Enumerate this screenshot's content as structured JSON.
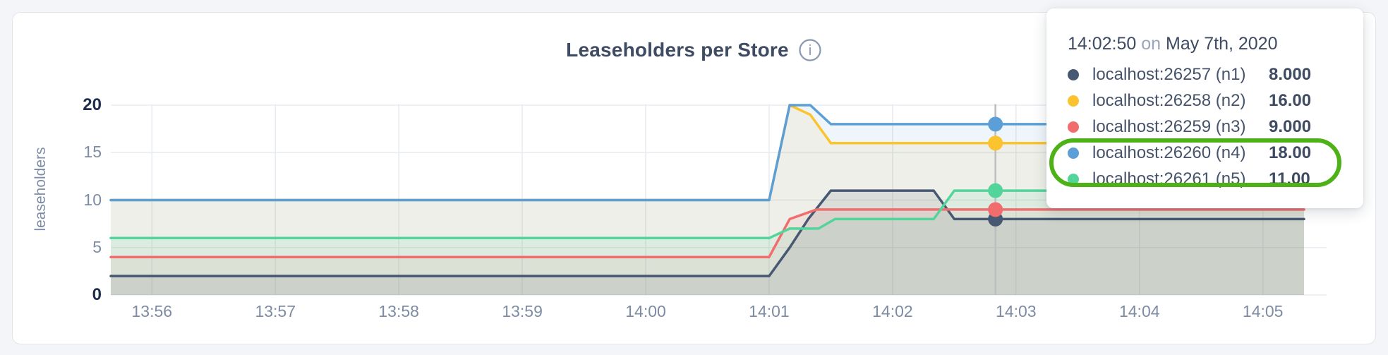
{
  "page": {
    "background": "#f4f5f8"
  },
  "header": {
    "title": "Leaseholders per Store",
    "info_glyph": "i",
    "info_icon_color": "#8997b1"
  },
  "chart_data": {
    "type": "area",
    "title": "Leaseholders per Store",
    "xlabel": "",
    "ylabel": "leaseholders",
    "grid": true,
    "legend_position": "hover-tooltip",
    "ylim": [
      0,
      20
    ],
    "y_ticks": [
      "0",
      "5",
      "10",
      "15",
      "20"
    ],
    "y_tick_values": [
      0,
      5,
      10,
      15,
      20
    ],
    "x_ticks": [
      "13:56",
      "13:57",
      "13:58",
      "13:59",
      "14:00",
      "14:01",
      "14:02",
      "14:03",
      "14:04",
      "14:05"
    ],
    "x_tick_seconds": [
      20,
      80,
      140,
      200,
      260,
      320,
      380,
      440,
      500,
      560
    ],
    "x_domain_labels": [
      "13:55:40",
      "14:05:20"
    ],
    "x_domain_seconds": [
      0,
      580
    ],
    "series": [
      {
        "name": "localhost:26257 (n1)",
        "color": "#475872",
        "fill_opacity": 0.13,
        "points": [
          [
            0,
            2
          ],
          [
            320,
            2
          ],
          [
            330,
            5
          ],
          [
            339,
            8
          ],
          [
            350,
            11
          ],
          [
            400,
            11
          ],
          [
            410,
            8
          ],
          [
            580,
            8
          ]
        ]
      },
      {
        "name": "localhost:26258 (n2)",
        "color": "#fbc32d",
        "fill_opacity": 0.1,
        "points": [
          [
            0,
            10
          ],
          [
            320,
            10
          ],
          [
            330,
            20
          ],
          [
            340,
            19
          ],
          [
            350,
            16
          ],
          [
            580,
            16
          ]
        ]
      },
      {
        "name": "localhost:26259 (n3)",
        "color": "#f16d6d",
        "fill_opacity": 0.1,
        "points": [
          [
            0,
            4
          ],
          [
            320,
            4
          ],
          [
            330,
            8
          ],
          [
            343,
            9
          ],
          [
            580,
            9
          ]
        ]
      },
      {
        "name": "localhost:26260 (n4)",
        "color": "#5b9fd6",
        "fill_opacity": 0.1,
        "points": [
          [
            0,
            10
          ],
          [
            320,
            10
          ],
          [
            330,
            20
          ],
          [
            340,
            20
          ],
          [
            350,
            18
          ],
          [
            580,
            18
          ]
        ]
      },
      {
        "name": "localhost:26261 (n5)",
        "color": "#53d49b",
        "fill_opacity": 0.1,
        "points": [
          [
            0,
            6
          ],
          [
            320,
            6
          ],
          [
            330,
            7
          ],
          [
            344,
            7
          ],
          [
            352,
            8
          ],
          [
            400,
            8
          ],
          [
            410,
            11
          ],
          [
            580,
            11
          ]
        ]
      }
    ],
    "hover": {
      "t_seconds": 430,
      "time_label": "14:02:50",
      "values": [
        8,
        16,
        9,
        18,
        11
      ],
      "line_color": "#bdbfc1"
    },
    "gridline_color": "#e8ebf0"
  },
  "tooltip": {
    "time": "14:02:50",
    "connector": "on",
    "date": "May 7th, 2020",
    "rows": [
      {
        "label": "localhost:26257 (n1)",
        "value": "8.000",
        "color": "#475872"
      },
      {
        "label": "localhost:26258 (n2)",
        "value": "16.00",
        "color": "#fbc32d"
      },
      {
        "label": "localhost:26259 (n3)",
        "value": "9.000",
        "color": "#f16d6d"
      },
      {
        "label": "localhost:26260 (n4)",
        "value": "18.00",
        "color": "#5b9fd6"
      },
      {
        "label": "localhost:26261 (n5)",
        "value": "11.00",
        "color": "#53d49b"
      }
    ],
    "annotation": {
      "color": "#4db117",
      "circled_rows": [
        3,
        4
      ]
    }
  }
}
